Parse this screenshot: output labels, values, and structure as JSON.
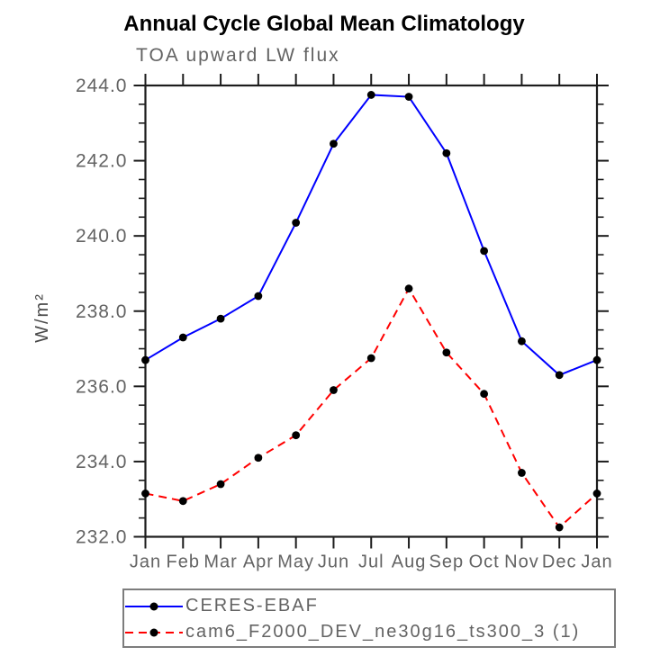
{
  "figure": {
    "title": "Annual Cycle Global Mean Climatology",
    "subtitle": "TOA upward LW flux",
    "ylabel": "W/m²"
  },
  "colors": {
    "axis": "#1c1c1c",
    "tick_label": "#636363",
    "title": "#000000",
    "legend_border": "#7d7d7d",
    "series_blue": "#0000ff",
    "series_red": "#ff0000",
    "marker": "#000000"
  },
  "chart_data": {
    "type": "line",
    "title": "Annual Cycle Global Mean Climatology",
    "subtitle": "TOA upward LW flux",
    "xlabel": "",
    "ylabel": "W/m²",
    "ylim": [
      232.0,
      244.0
    ],
    "ytick_interval": 2.0,
    "yminor_interval": 0.5,
    "ytick_labels": [
      "232.0",
      "234.0",
      "236.0",
      "238.0",
      "240.0",
      "242.0",
      "244.0"
    ],
    "grid": false,
    "legend_position": "bottom-left",
    "categories": [
      "Jan",
      "Feb",
      "Mar",
      "Apr",
      "May",
      "Jun",
      "Jul",
      "Aug",
      "Sep",
      "Oct",
      "Nov",
      "Dec",
      "Jan"
    ],
    "series": [
      {
        "name": "CERES-EBAF",
        "color": "#0000ff",
        "line_style": "solid",
        "marker": "filled-circle",
        "marker_color": "#000000",
        "values": [
          236.7,
          237.3,
          237.8,
          238.4,
          240.35,
          242.45,
          243.75,
          243.7,
          242.2,
          239.6,
          237.2,
          236.3,
          236.7
        ]
      },
      {
        "name": "cam6_F2000_DEV_ne30g16_ts300_3 (1)",
        "color": "#ff0000",
        "line_style": "dashed",
        "marker": "filled-circle",
        "marker_color": "#000000",
        "values": [
          233.15,
          232.95,
          233.4,
          234.1,
          234.7,
          235.9,
          236.75,
          238.6,
          236.9,
          235.8,
          233.7,
          232.25,
          233.15
        ]
      }
    ]
  }
}
